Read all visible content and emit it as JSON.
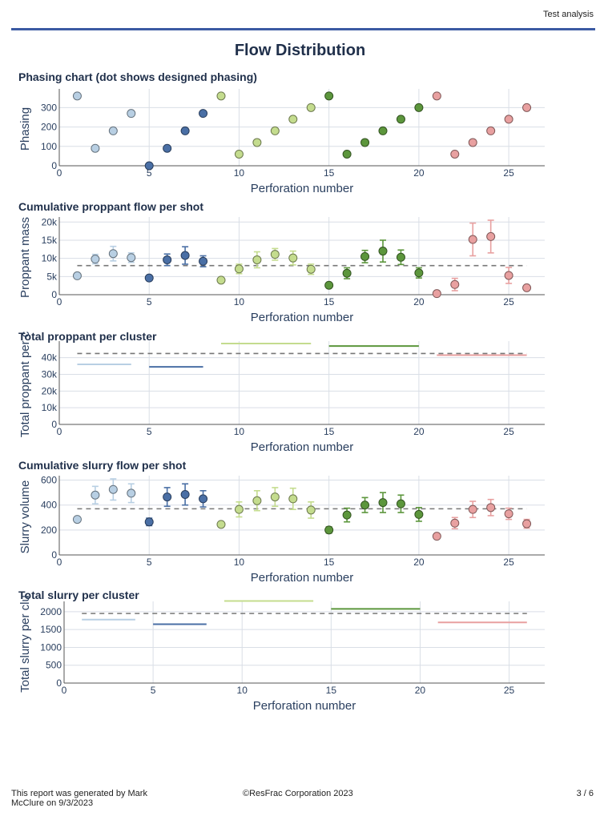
{
  "header": {
    "report_name": "Test analysis"
  },
  "title": "Flow Distribution",
  "colors": {
    "light_blue": "#b8cfe3",
    "dark_blue": "#4a6fa5",
    "light_green": "#c4dc8e",
    "dark_green": "#5c963c",
    "salmon": "#e8a0a0",
    "grid": "#d9dee6",
    "axis": "#555555",
    "dash": "#777777"
  },
  "chart_data": [
    {
      "id": "phasing",
      "type": "scatter",
      "title": "Phasing chart (dot shows designed phasing)",
      "xlabel": "Perforation number",
      "ylabel": "Phasing",
      "xlim": [
        0,
        27
      ],
      "ylim": [
        0,
        380
      ],
      "xticks": [
        0,
        5,
        10,
        15,
        20,
        25
      ],
      "yticks": [
        0,
        100,
        200,
        300
      ],
      "ytick_labels": [
        "0",
        "100",
        "200",
        "300"
      ],
      "series": [
        {
          "color": "light_blue",
          "x": [
            1,
            2,
            3,
            4
          ],
          "y": [
            360,
            90,
            180,
            270
          ]
        },
        {
          "color": "dark_blue",
          "x": [
            5,
            6,
            7,
            8
          ],
          "y": [
            0,
            90,
            180,
            270
          ]
        },
        {
          "color": "light_green",
          "x": [
            9,
            10,
            11,
            12,
            13,
            14
          ],
          "y": [
            360,
            60,
            120,
            180,
            240,
            300
          ]
        },
        {
          "color": "dark_green",
          "x": [
            15,
            16,
            17,
            18,
            19,
            20
          ],
          "y": [
            360,
            60,
            120,
            180,
            240,
            300
          ]
        },
        {
          "color": "salmon",
          "x": [
            21,
            22,
            23,
            24,
            25,
            26
          ],
          "y": [
            360,
            60,
            120,
            180,
            240,
            300
          ]
        }
      ]
    },
    {
      "id": "prop_shot",
      "type": "scatter",
      "title": "Cumulative proppant flow per shot",
      "xlabel": "Perforation number",
      "ylabel": "Proppant mass",
      "xlim": [
        0,
        27
      ],
      "ylim": [
        0,
        20500
      ],
      "xticks": [
        0,
        5,
        10,
        15,
        20,
        25
      ],
      "yticks": [
        0,
        5000,
        10000,
        15000,
        20000
      ],
      "ytick_labels": [
        "0",
        "5k",
        "10k",
        "15k",
        "20k"
      ],
      "reference_line": {
        "y": 8000,
        "x_from": 1,
        "x_to": 26
      },
      "series": [
        {
          "color": "light_blue",
          "x": [
            1,
            2,
            3,
            4
          ],
          "y": [
            5200,
            9800,
            11300,
            10200
          ],
          "err": [
            0,
            1300,
            2000,
            1300
          ]
        },
        {
          "color": "dark_blue",
          "x": [
            5,
            6,
            7,
            8
          ],
          "y": [
            4600,
            9600,
            10800,
            9200
          ],
          "err": [
            0,
            1600,
            2400,
            1500
          ]
        },
        {
          "color": "light_green",
          "x": [
            9,
            10,
            11,
            12,
            13,
            14
          ],
          "y": [
            4000,
            7100,
            9600,
            11100,
            10100,
            7000
          ],
          "err": [
            0,
            1300,
            2200,
            1600,
            1900,
            1400
          ]
        },
        {
          "color": "dark_green",
          "x": [
            15,
            16,
            17,
            18,
            19,
            20
          ],
          "y": [
            2600,
            5900,
            10500,
            12000,
            10300,
            6000
          ],
          "err": [
            0,
            1500,
            1700,
            3000,
            2000,
            1400
          ]
        },
        {
          "color": "salmon",
          "x": [
            21,
            22,
            23,
            24,
            25,
            26
          ],
          "y": [
            300,
            2800,
            15200,
            16000,
            5300,
            1900
          ],
          "err": [
            0,
            1700,
            4500,
            4500,
            2200,
            0
          ]
        }
      ]
    },
    {
      "id": "prop_cluster",
      "type": "line",
      "title": "Total proppant per cluster",
      "xlabel": "Perforation number",
      "ylabel": "Total proppant per c",
      "xlim": [
        0,
        27
      ],
      "ylim": [
        0,
        48000
      ],
      "xticks": [
        0,
        5,
        10,
        15,
        20,
        25
      ],
      "yticks": [
        0,
        10000,
        20000,
        30000,
        40000
      ],
      "ytick_labels": [
        "0",
        "10k",
        "20k",
        "30k",
        "40k"
      ],
      "reference_line": {
        "y": 42500,
        "x_from": 1,
        "x_to": 26
      },
      "segments": [
        {
          "color": "light_blue",
          "x_from": 1,
          "x_to": 4,
          "y": 36000
        },
        {
          "color": "dark_blue",
          "x_from": 5,
          "x_to": 8,
          "y": 34500
        },
        {
          "color": "light_green",
          "x_from": 9,
          "x_to": 14,
          "y": 48500
        },
        {
          "color": "dark_green",
          "x_from": 15,
          "x_to": 20,
          "y": 47000
        },
        {
          "color": "salmon",
          "x_from": 21,
          "x_to": 26,
          "y": 41500
        }
      ]
    },
    {
      "id": "slurry_shot",
      "type": "scatter",
      "title": "Cumulative slurry flow per shot",
      "xlabel": "Perforation number",
      "ylabel": "Slurry volume",
      "xlim": [
        0,
        27
      ],
      "ylim": [
        0,
        610
      ],
      "xticks": [
        0,
        5,
        10,
        15,
        20,
        25
      ],
      "yticks": [
        0,
        200,
        400,
        600
      ],
      "ytick_labels": [
        "0",
        "200",
        "400",
        "600"
      ],
      "reference_line": {
        "y": 370,
        "x_from": 1,
        "x_to": 26
      },
      "series": [
        {
          "color": "light_blue",
          "x": [
            1,
            2,
            3,
            4
          ],
          "y": [
            285,
            480,
            525,
            495
          ],
          "err": [
            20,
            70,
            85,
            75
          ]
        },
        {
          "color": "dark_blue",
          "x": [
            5,
            6,
            7,
            8
          ],
          "y": [
            265,
            465,
            485,
            450
          ],
          "err": [
            30,
            75,
            85,
            65
          ]
        },
        {
          "color": "light_green",
          "x": [
            9,
            10,
            11,
            12,
            13,
            14
          ],
          "y": [
            245,
            365,
            435,
            465,
            450,
            360
          ],
          "err": [
            15,
            60,
            80,
            75,
            85,
            65
          ]
        },
        {
          "color": "dark_green",
          "x": [
            15,
            16,
            17,
            18,
            19,
            20
          ],
          "y": [
            200,
            320,
            400,
            420,
            410,
            325
          ],
          "err": [
            25,
            55,
            60,
            80,
            70,
            55
          ]
        },
        {
          "color": "salmon",
          "x": [
            21,
            22,
            23,
            24,
            25,
            26
          ],
          "y": [
            150,
            255,
            365,
            380,
            330,
            250
          ],
          "err": [
            0,
            45,
            65,
            65,
            45,
            35
          ]
        }
      ]
    },
    {
      "id": "slurry_cluster",
      "type": "line",
      "title": "Total slurry per cluster",
      "xlabel": "Perforation number",
      "ylabel": "Total slurry per clu",
      "xlim": [
        0,
        27
      ],
      "ylim": [
        0,
        2200
      ],
      "xticks": [
        0,
        5,
        10,
        15,
        20,
        25
      ],
      "yticks": [
        0,
        500,
        1000,
        1500,
        2000
      ],
      "ytick_labels": [
        "0",
        "500",
        "1000",
        "1500",
        "2000"
      ],
      "reference_line": {
        "y": 1950,
        "x_from": 1,
        "x_to": 26
      },
      "segments": [
        {
          "color": "light_blue",
          "x_from": 1,
          "x_to": 4,
          "y": 1780
        },
        {
          "color": "dark_blue",
          "x_from": 5,
          "x_to": 8,
          "y": 1650
        },
        {
          "color": "light_green",
          "x_from": 9,
          "x_to": 14,
          "y": 2300
        },
        {
          "color": "dark_green",
          "x_from": 15,
          "x_to": 20,
          "y": 2080
        },
        {
          "color": "salmon",
          "x_from": 21,
          "x_to": 26,
          "y": 1700
        }
      ]
    }
  ],
  "footer": {
    "generated_line1": "This report was generated by Mark",
    "generated_line2": "McClure on 9/3/2023",
    "copyright": "©ResFrac Corporation 2023",
    "page": "3 / 6"
  }
}
